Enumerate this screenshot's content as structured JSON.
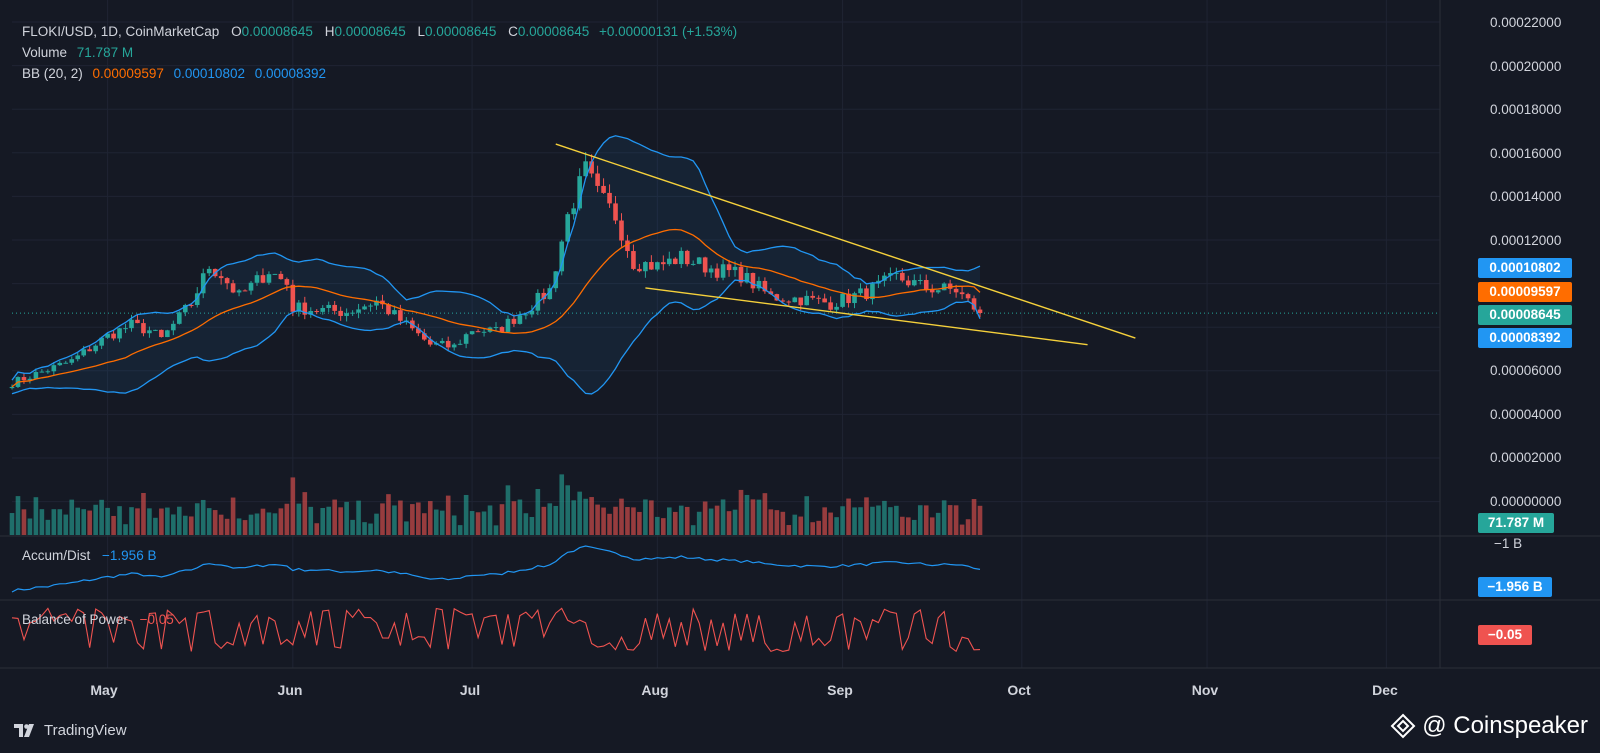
{
  "legend": {
    "symbol": "FLOKI/USD, 1D, CoinMarketCap",
    "o_label": "O",
    "o": "0.00008645",
    "h_label": "H",
    "h": "0.00008645",
    "l_label": "L",
    "l": "0.00008645",
    "c_label": "C",
    "c": "0.00008645",
    "change": "+0.00000131 (+1.53%)",
    "volume_label": "Volume",
    "volume": "71.787 M",
    "bb_label": "BB (20, 2)",
    "bb_basis": "0.00009597",
    "bb_upper": "0.00010802",
    "bb_lower": "0.00008392"
  },
  "indicators": {
    "ad_label": "Accum/Dist",
    "ad_value": "−1.956 B",
    "bop_label": "Balance of Power",
    "bop_value": "−0.05"
  },
  "y_axis": [
    "0.00022000",
    "0.00020000",
    "0.00018000",
    "0.00016000",
    "0.00014000",
    "0.00012000",
    "0.00006000",
    "0.00004000",
    "0.00002000",
    "0.00000000"
  ],
  "y_axis_ad": "−1 B",
  "badges": {
    "bb_upper": "0.00010802",
    "bb_basis": "0.00009597",
    "price": "0.00008645",
    "bb_lower": "0.00008392",
    "volume": "71.787 M",
    "ad": "−1.956 B",
    "bop": "−0.05"
  },
  "x_axis": [
    "May",
    "Jun",
    "Jul",
    "Aug",
    "Sep",
    "Oct",
    "Nov",
    "Dec"
  ],
  "branding": {
    "tradingview": "TradingView",
    "watermark": "@ Coinspeaker"
  },
  "colors": {
    "up": "#26a69a",
    "down": "#ef5350",
    "bb_band": "#2196f3",
    "bb_basis": "#ff6d00",
    "trendline": "#f5d03b",
    "background": "#151924"
  },
  "chart_data": {
    "type": "candlestick",
    "title": "FLOKI/USD, 1D, CoinMarketCap",
    "x_range": [
      "2023-04-15",
      "2023-12-15"
    ],
    "ylim": [
      5e-05,
      0.00022
    ],
    "daily_close": [
      [
        "2023-04-15",
        5.45e-05
      ],
      [
        "2023-04-25",
        6.45e-05
      ],
      [
        "2023-05-01",
        7.6e-05
      ],
      [
        "2023-05-05",
        8.1e-05
      ],
      [
        "2023-05-08",
        7.85e-05
      ],
      [
        "2023-05-10",
        7.45e-05
      ],
      [
        "2023-05-15",
        9.1e-05
      ],
      [
        "2023-05-18",
        0.000108
      ],
      [
        "2023-05-20",
        0.000104
      ],
      [
        "2023-05-23",
        9.4e-05
      ],
      [
        "2023-05-28",
        0.000106
      ],
      [
        "2023-05-31",
        0.0001
      ],
      [
        "2023-06-01",
        8.9e-05
      ],
      [
        "2023-06-05",
        8.8e-05
      ],
      [
        "2023-06-10",
        8.7e-05
      ],
      [
        "2023-06-15",
        9.2e-05
      ],
      [
        "2023-06-20",
        8.1e-05
      ],
      [
        "2023-06-24",
        7.2e-05
      ],
      [
        "2023-06-28",
        7.1e-05
      ],
      [
        "2023-07-01",
        7.9e-05
      ],
      [
        "2023-07-05",
        7.8e-05
      ],
      [
        "2023-07-10",
        8.8e-05
      ],
      [
        "2023-07-14",
        9.7e-05
      ],
      [
        "2023-07-17",
        0.000131
      ],
      [
        "2023-07-20",
        0.000152
      ],
      [
        "2023-07-22",
        0.000141
      ],
      [
        "2023-07-25",
        0.000131
      ],
      [
        "2023-07-28",
        0.00011
      ],
      [
        "2023-08-01",
        0.000108
      ],
      [
        "2023-08-05",
        0.000112
      ],
      [
        "2023-08-10",
        0.000107
      ],
      [
        "2023-08-15",
        0.000104
      ],
      [
        "2023-08-20",
        9.4e-05
      ],
      [
        "2023-08-25",
        9.3e-05
      ],
      [
        "2023-08-30",
        9.1e-05
      ],
      [
        "2023-09-05",
        9.6e-05
      ],
      [
        "2023-09-10",
        0.000103
      ],
      [
        "2023-09-15",
        9.8e-05
      ],
      [
        "2023-09-20",
        9.7e-05
      ],
      [
        "2023-09-24",
        8.65e-05
      ]
    ],
    "bollinger": {
      "period": 20,
      "stddev": 2,
      "last": {
        "basis": 9.597e-05,
        "upper": 0.00010802,
        "lower": 8.392e-05
      }
    },
    "trendlines": [
      {
        "name": "upper",
        "from": [
          "2023-07-15",
          0.000164
        ],
        "to": [
          "2023-10-20",
          7.5e-05
        ]
      },
      {
        "name": "lower",
        "from": [
          "2023-07-30",
          9.8e-05
        ],
        "to": [
          "2023-10-12",
          7.2e-05
        ]
      }
    ],
    "volume_last": "71.787 M",
    "accum_dist_last": "−1.956 B",
    "balance_of_power_last": "−0.05"
  }
}
